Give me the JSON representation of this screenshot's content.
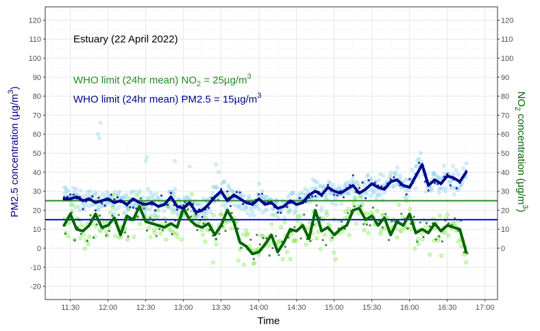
{
  "chart_data": {
    "type": "scatter",
    "annotations": {
      "location": "Estuary (22 April 2022)",
      "no2_limit_prefix": "WHO limit (24hr mean) NO",
      "no2_limit_sub": "2",
      "no2_limit_suffix": " = 25µg/m",
      "no2_limit_sup": "3",
      "pm25_limit_prefix": "WHO limit (24hr mean)  PM2.5 = 15µg/m",
      "pm25_limit_sup": "3"
    },
    "xlabel": "Time",
    "ylabel_left": {
      "main": "PM2.5 concentration (µg/m",
      "sup": "3",
      "end": ")"
    },
    "ylabel_right": {
      "pre": "NO",
      "sub": "2",
      "mid": " concentration (µg/m",
      "sup": "3",
      "end": ")"
    },
    "x_ticks": [
      "11:30",
      "12:00",
      "12:30",
      "13:00",
      "13:30",
      "14:00",
      "14:30",
      "15:00",
      "15:30",
      "16:00",
      "16:30",
      "17:00"
    ],
    "x_range_minutes_after": "11:30",
    "xlim": [
      -20,
      340
    ],
    "ylim": [
      -27,
      127
    ],
    "left_ticks": [
      -20,
      -10,
      0,
      10,
      20,
      30,
      40,
      50,
      60,
      70,
      80,
      90,
      100,
      110,
      120
    ],
    "right_ticks": [
      0,
      10,
      20,
      30,
      40,
      50,
      60,
      70,
      80,
      90,
      100,
      110,
      120
    ],
    "grid": true,
    "limits": [
      {
        "name": "WHO NO2 limit",
        "value": 25,
        "color": "#228b22"
      },
      {
        "name": "WHO PM2.5 limit",
        "value": 15,
        "color": "#0000cd"
      }
    ],
    "colors": {
      "pm25_points": "#87ceeb",
      "pm25_points_dark": "#00008b",
      "pm25_line": "#00008b",
      "no2_points": "#7cfc00",
      "no2_points_dark": "#004d00",
      "no2_line": "#006400",
      "left_title": "#00008b",
      "right_title": "#006400",
      "location_text": "#000000",
      "no2_ann_text": "#228b22",
      "pm25_ann_text": "#00008b"
    },
    "series": [
      {
        "name": "PM2.5 (smoothed)",
        "x": [
          "11:25",
          "11:30",
          "11:35",
          "11:40",
          "11:45",
          "11:50",
          "11:55",
          "12:00",
          "12:05",
          "12:10",
          "12:15",
          "12:20",
          "12:25",
          "12:30",
          "12:35",
          "12:40",
          "12:45",
          "12:50",
          "12:55",
          "13:00",
          "13:05",
          "13:10",
          "13:15",
          "13:20",
          "13:25",
          "13:30",
          "13:35",
          "13:40",
          "13:45",
          "13:50",
          "13:55",
          "14:00",
          "14:05",
          "14:10",
          "14:15",
          "14:20",
          "14:25",
          "14:30",
          "14:35",
          "14:40",
          "14:45",
          "14:50",
          "14:55",
          "15:00",
          "15:05",
          "15:10",
          "15:15",
          "15:20",
          "15:25",
          "15:30",
          "15:35",
          "15:40",
          "15:45",
          "15:50",
          "15:55",
          "16:00",
          "16:05",
          "16:10",
          "16:15",
          "16:20",
          "16:25",
          "16:30",
          "16:35",
          "16:40",
          "16:45"
        ],
        "values": [
          26,
          26,
          27,
          25,
          26,
          24,
          25,
          26,
          24,
          25,
          23,
          26,
          24,
          23,
          24,
          22,
          23,
          27,
          22,
          21,
          24,
          19,
          20,
          23,
          27,
          30,
          25,
          28,
          26,
          24,
          23,
          26,
          23,
          24,
          21,
          22,
          25,
          23,
          24,
          28,
          30,
          28,
          32,
          30,
          29,
          31,
          33,
          29,
          31,
          34,
          32,
          31,
          35,
          36,
          33,
          32,
          38,
          44,
          33,
          36,
          34,
          38,
          37,
          35,
          40
        ]
      },
      {
        "name": "NO2 (smoothed)",
        "x": [
          "11:25",
          "11:30",
          "11:35",
          "11:40",
          "11:45",
          "11:50",
          "11:55",
          "12:00",
          "12:05",
          "12:10",
          "12:15",
          "12:20",
          "12:25",
          "12:30",
          "12:35",
          "12:40",
          "12:45",
          "12:50",
          "12:55",
          "13:00",
          "13:05",
          "13:10",
          "13:15",
          "13:20",
          "13:25",
          "13:30",
          "13:35",
          "13:40",
          "13:45",
          "13:50",
          "13:55",
          "14:00",
          "14:05",
          "14:10",
          "14:15",
          "14:20",
          "14:25",
          "14:30",
          "14:35",
          "14:40",
          "14:45",
          "14:50",
          "14:55",
          "15:00",
          "15:05",
          "15:10",
          "15:15",
          "15:20",
          "15:25",
          "15:30",
          "15:35",
          "15:40",
          "15:45",
          "15:50",
          "15:55",
          "16:00",
          "16:05",
          "16:10",
          "16:15",
          "16:20",
          "16:25",
          "16:30",
          "16:35",
          "16:40",
          "16:45"
        ],
        "values": [
          12,
          18,
          10,
          9,
          12,
          18,
          11,
          12,
          16,
          7,
          17,
          15,
          22,
          14,
          13,
          12,
          11,
          13,
          11,
          21,
          15,
          12,
          11,
          13,
          7,
          12,
          20,
          14,
          3,
          1,
          -3,
          -2,
          2,
          7,
          -2,
          3,
          10,
          9,
          12,
          5,
          20,
          9,
          11,
          7,
          10,
          12,
          20,
          21,
          15,
          17,
          12,
          16,
          7,
          14,
          12,
          18,
          8,
          10,
          8,
          13,
          9,
          12,
          11,
          10,
          -2
        ]
      }
    ]
  }
}
